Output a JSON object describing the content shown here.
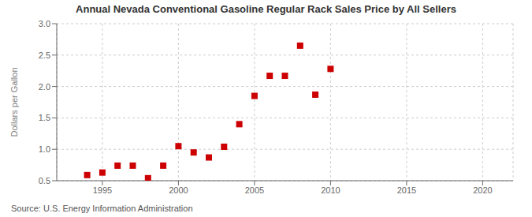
{
  "chart_data": {
    "type": "scatter",
    "title": "Annual Nevada Conventional Gasoline Regular Rack Sales Price by All Sellers",
    "ylabel": "Dollars per Gallon",
    "annotation": "Source: U.S. Energy Information Administration",
    "x": [
      1994,
      1995,
      1996,
      1997,
      1998,
      1999,
      2000,
      2001,
      2002,
      2003,
      2004,
      2005,
      2006,
      2007,
      2008,
      2009,
      2010
    ],
    "values": [
      0.59,
      0.63,
      0.74,
      0.74,
      0.54,
      0.74,
      1.05,
      0.95,
      0.87,
      1.04,
      1.4,
      1.85,
      2.17,
      2.17,
      2.65,
      1.87,
      2.28
    ],
    "color": "#cc0000",
    "marker": "square",
    "xlim": [
      1992,
      2022
    ],
    "ylim": [
      0.5,
      3.0
    ],
    "xticks": [
      1995,
      2000,
      2005,
      2010,
      2015,
      2020
    ],
    "yticks": [
      0.5,
      {
        "value": 1,
        "label": "1.0"
      },
      1.5,
      {
        "value": 2,
        "label": "2.0"
      },
      2.5,
      {
        "value": 3,
        "label": "3.0"
      }
    ],
    "grid": true
  }
}
